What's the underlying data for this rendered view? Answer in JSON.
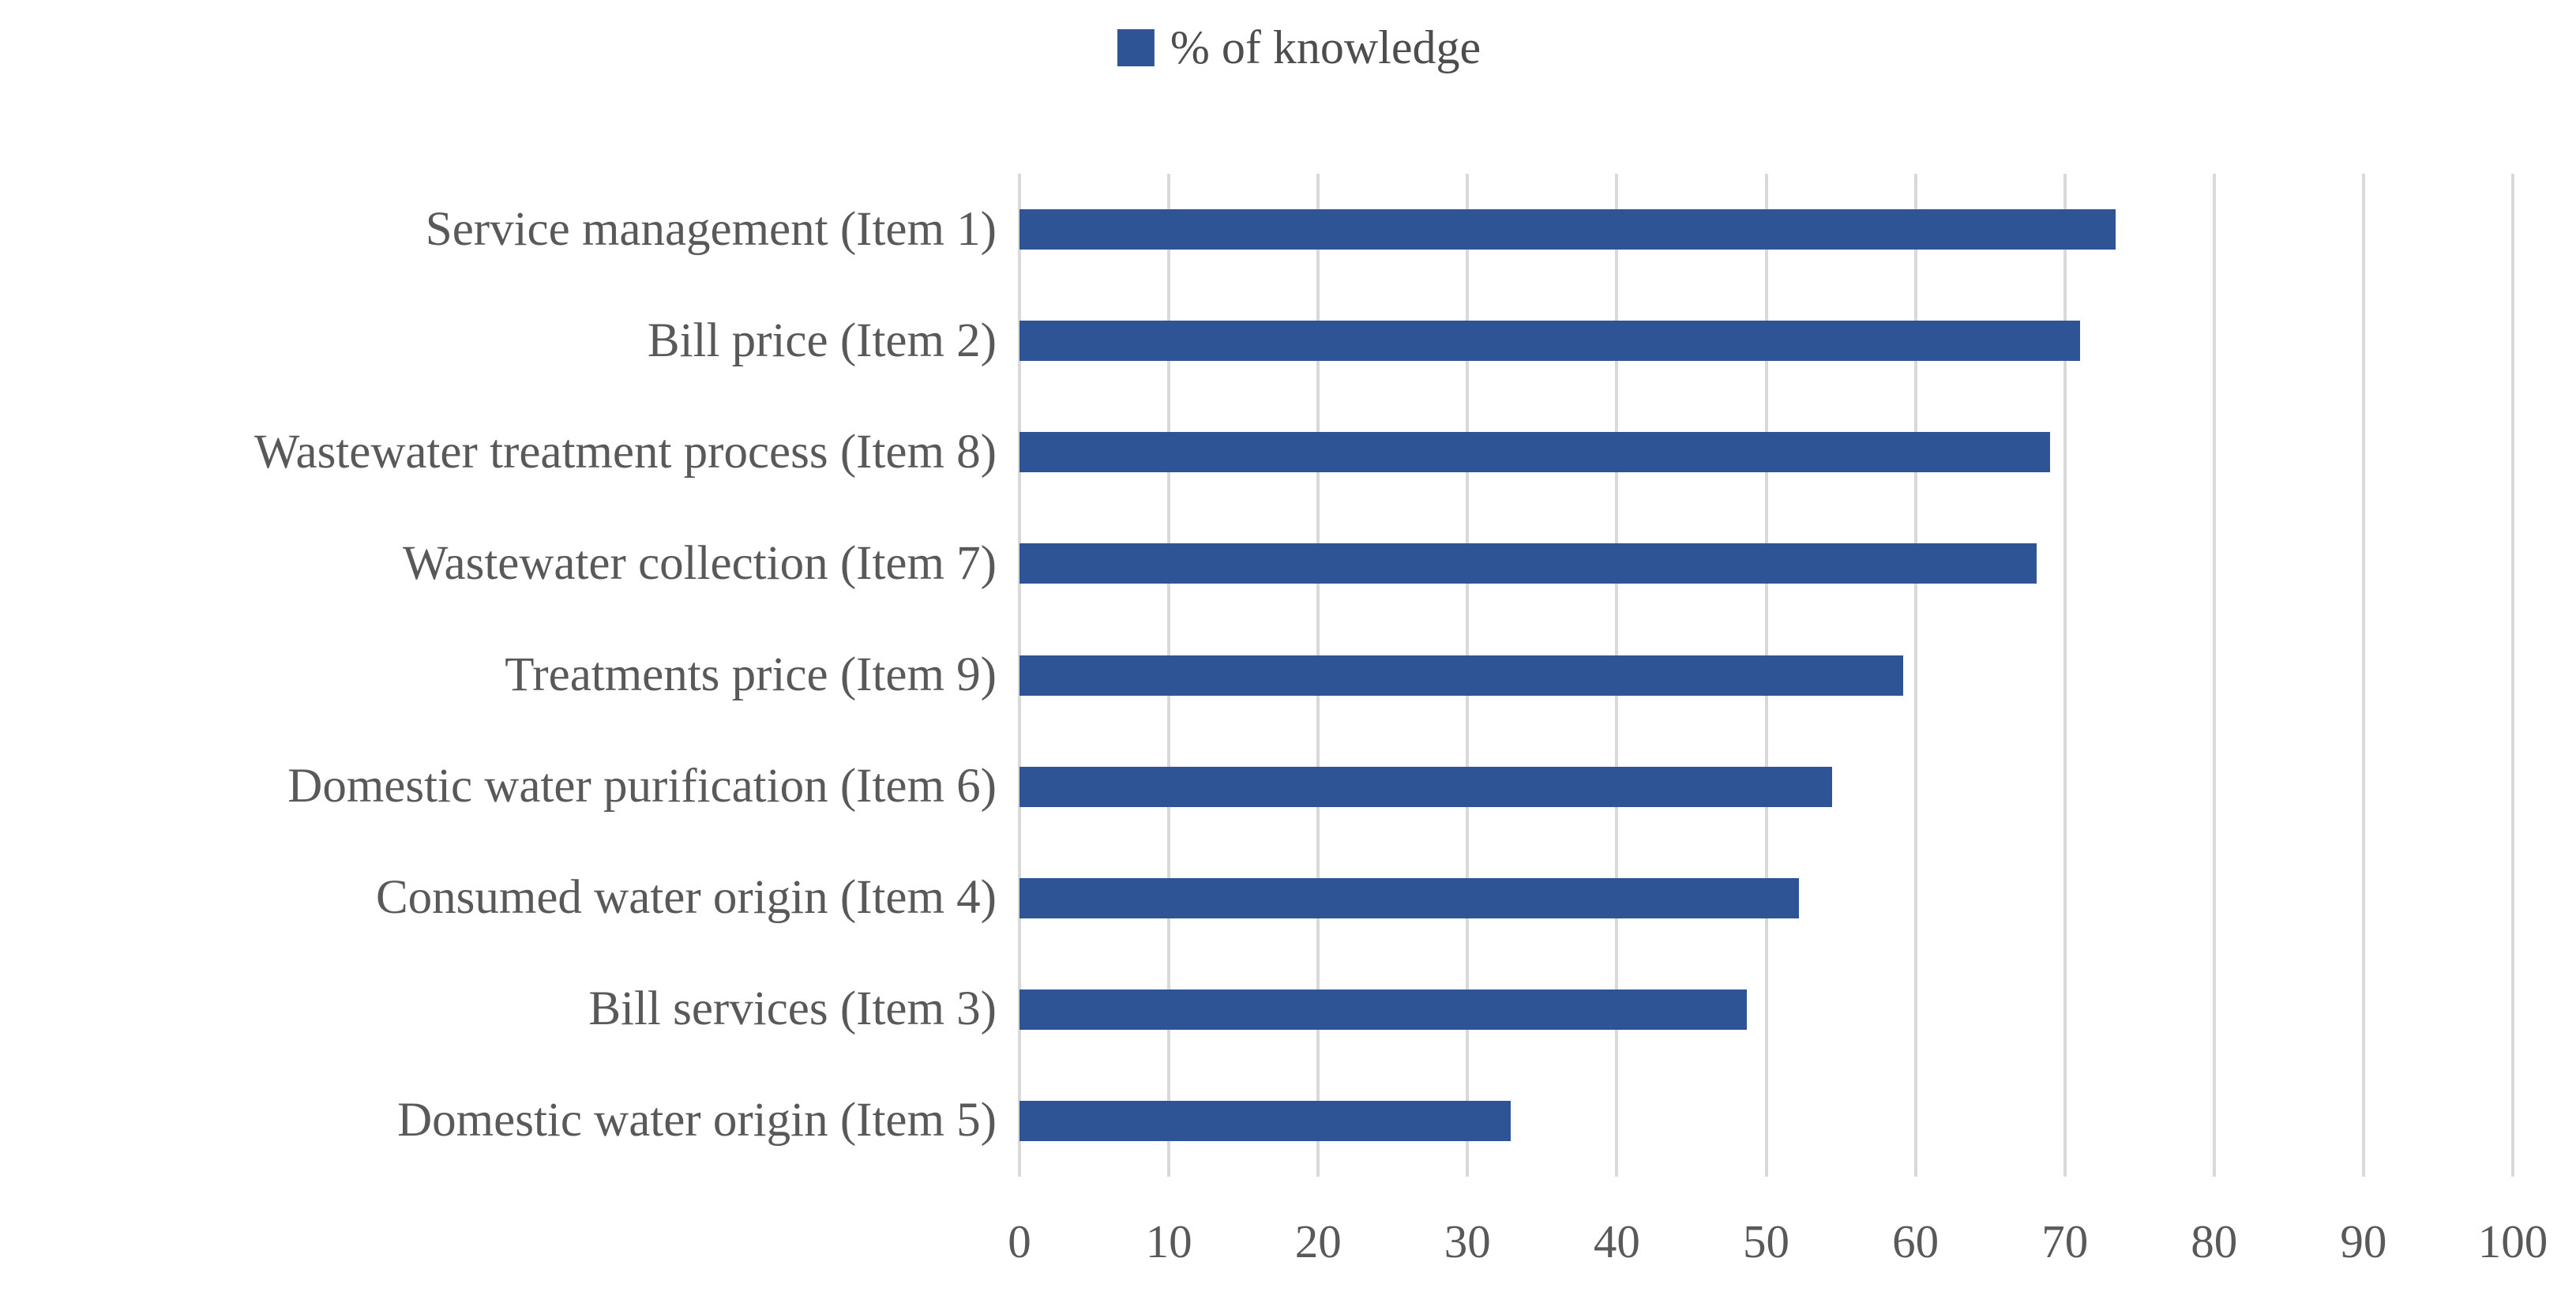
{
  "chart_data": {
    "type": "bar",
    "orientation": "horizontal",
    "title": "",
    "legend_label": "% of knowledge",
    "legend_position": "top-center",
    "categories": [
      "Service management (Item 1)",
      "Bill price (Item 2)",
      "Wastewater treatment process (Item 8)",
      "Wastewater collection (Item 7)",
      "Treatments price (Item 9)",
      "Domestic water purification (Item 6)",
      "Consumed water origin (Item 4)",
      "Bill services (Item 3)",
      "Domestic water origin (Item 5)"
    ],
    "values": [
      73.4,
      71.0,
      69.0,
      68.1,
      59.2,
      54.4,
      52.2,
      48.7,
      32.9
    ],
    "xlabel": "",
    "ylabel": "",
    "xlim": [
      0,
      100
    ],
    "xticks": [
      0,
      10,
      20,
      30,
      40,
      50,
      60,
      70,
      80,
      90,
      100
    ],
    "grid": "vertical-only",
    "colors": {
      "bar": "#2F5496",
      "gridline": "#D9D9D9",
      "axis_text": "#595959",
      "legend_text": "#4d4d4d",
      "background": "#ffffff"
    }
  }
}
